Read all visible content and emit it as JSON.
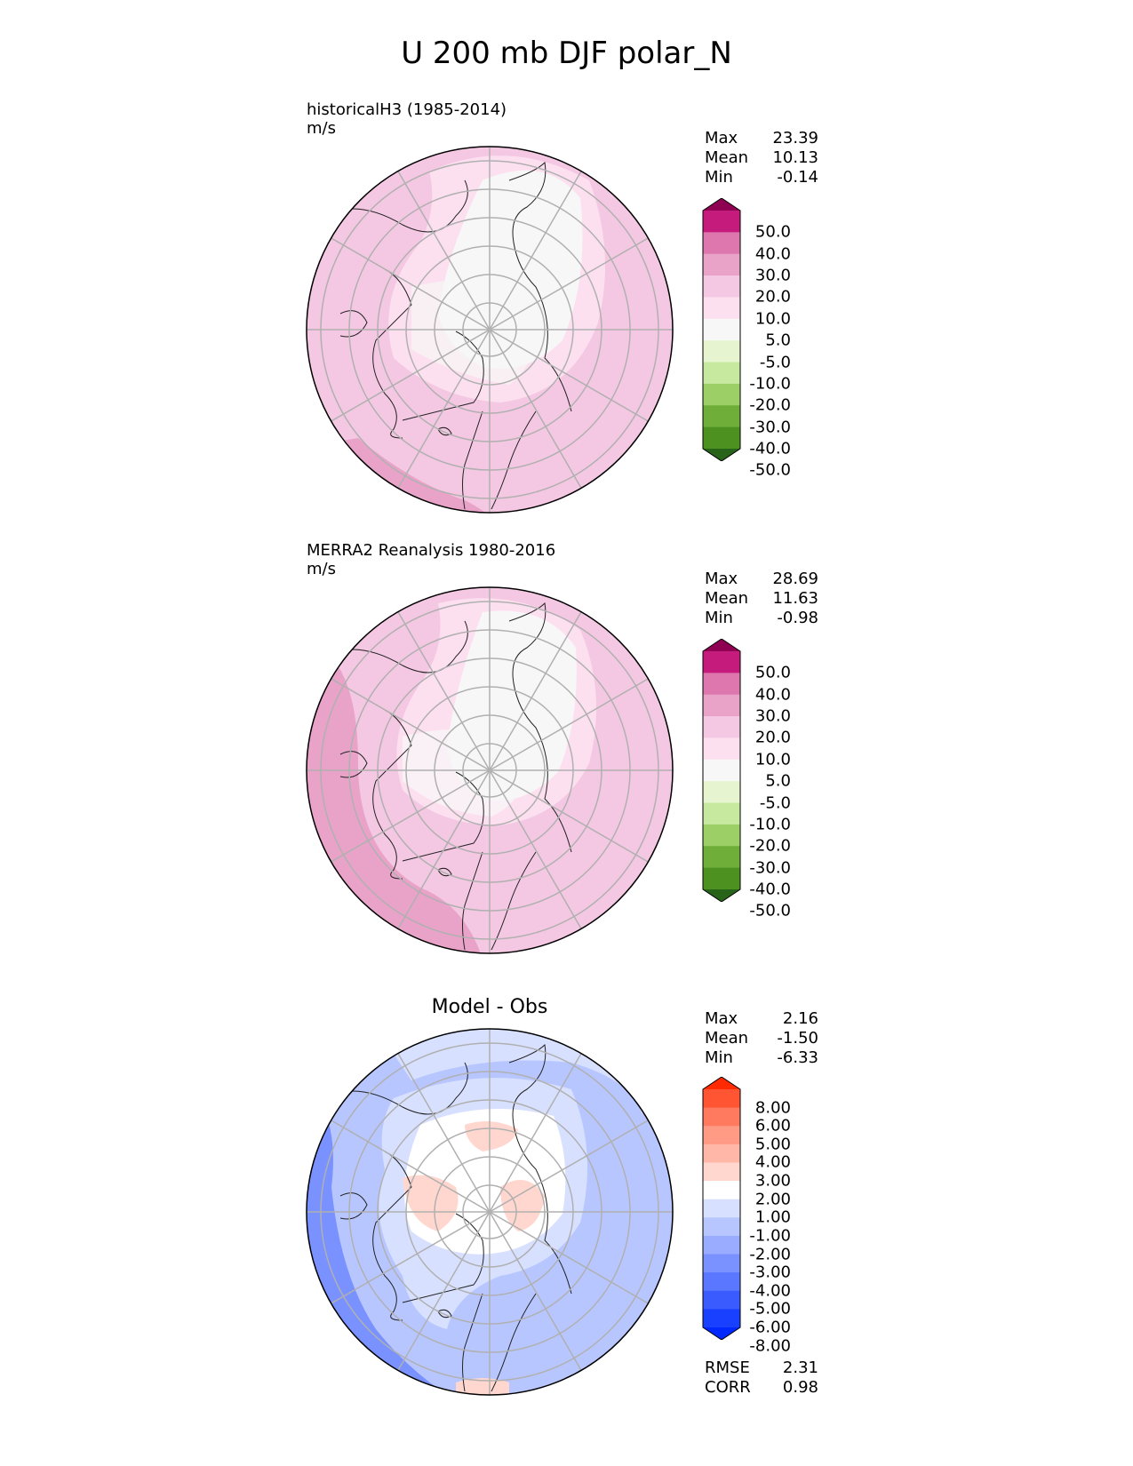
{
  "title": "U 200 mb DJF polar_N",
  "panels": [
    {
      "id": "test",
      "title_lines": [
        "historicalH3 (1985-2014)",
        "m/s"
      ],
      "stats": [
        {
          "label": "Max",
          "value": "23.39"
        },
        {
          "label": "Mean",
          "value": "10.13"
        },
        {
          "label": "Min",
          "value": "-0.14"
        }
      ],
      "colorbar": {
        "levels": [
          "50.0",
          "40.0",
          "30.0",
          "20.0",
          "10.0",
          "5.0",
          "-5.0",
          "-10.0",
          "-20.0",
          "-30.0",
          "-40.0",
          "-50.0"
        ],
        "colors": [
          "#8e0152",
          "#c51b7d",
          "#de77ae",
          "#e9a3c9",
          "#f4c8e2",
          "#fde0ef",
          "#f7f7f7",
          "#e6f5d0",
          "#c7e89f",
          "#9ccf66",
          "#6fae38",
          "#4d9221",
          "#276419"
        ]
      }
    },
    {
      "id": "ref",
      "title_lines": [
        "MERRA2 Reanalysis 1980-2016",
        "m/s"
      ],
      "stats": [
        {
          "label": "Max",
          "value": "28.69"
        },
        {
          "label": "Mean",
          "value": "11.63"
        },
        {
          "label": "Min",
          "value": "-0.98"
        }
      ],
      "colorbar": {
        "levels": [
          "50.0",
          "40.0",
          "30.0",
          "20.0",
          "10.0",
          "5.0",
          "-5.0",
          "-10.0",
          "-20.0",
          "-30.0",
          "-40.0",
          "-50.0"
        ],
        "colors": [
          "#8e0152",
          "#c51b7d",
          "#de77ae",
          "#e9a3c9",
          "#f4c8e2",
          "#fde0ef",
          "#f7f7f7",
          "#e6f5d0",
          "#c7e89f",
          "#9ccf66",
          "#6fae38",
          "#4d9221",
          "#276419"
        ]
      }
    },
    {
      "id": "diff",
      "title_center": "Model - Obs",
      "stats": [
        {
          "label": "Max",
          "value": "2.16"
        },
        {
          "label": "Mean",
          "value": "-1.50"
        },
        {
          "label": "Min",
          "value": "-6.33"
        }
      ],
      "colorbar": {
        "levels": [
          "8.00",
          "6.00",
          "5.00",
          "4.00",
          "3.00",
          "2.00",
          "1.00",
          "-1.00",
          "-2.00",
          "-3.00",
          "-4.00",
          "-5.00",
          "-6.00",
          "-8.00"
        ],
        "colors": [
          "#ff2a00",
          "#ff5533",
          "#ff7a5e",
          "#ff9a85",
          "#ffb8a8",
          "#ffd7cf",
          "#ffffff",
          "#d8e0ff",
          "#b8c6ff",
          "#99acff",
          "#7a92ff",
          "#5a78ff",
          "#3a5cff",
          "#1a40ff",
          "#0028ff"
        ]
      },
      "extra_stats": [
        {
          "label": "RMSE",
          "value": "2.31"
        },
        {
          "label": "CORR",
          "value": "0.98"
        }
      ]
    }
  ],
  "colors": {
    "pink_light": "#f4c8e2",
    "pink_mid": "#e9a3c9",
    "pink_pale": "#fde0ef",
    "white": "#f7f7f7",
    "blue_light": "#d8e0ff",
    "blue_mid": "#b8c6ff",
    "blue_dark": "#7a92ff",
    "red_light": "#ffd7cf"
  }
}
